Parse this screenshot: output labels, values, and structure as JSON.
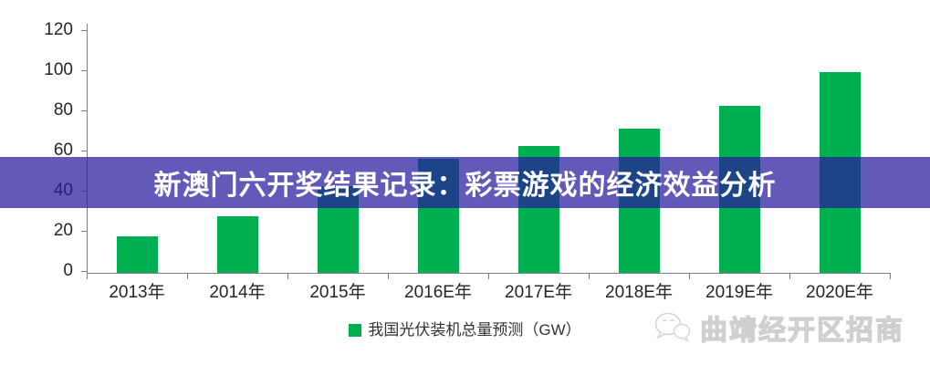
{
  "banner": {
    "title": "新澳门六开奖结果记录：彩票游戏的经济效益分析",
    "bg_color": "rgba(41,27,158,0.73)",
    "text_color": "#ffffff"
  },
  "chart_data": {
    "type": "bar",
    "title": "",
    "categories": [
      "2013年",
      "2014年",
      "2015年",
      "2016E年",
      "2017E年",
      "2018E年",
      "2019E年",
      "2020E年"
    ],
    "values": [
      18,
      28,
      43,
      57,
      63,
      72,
      83,
      100
    ],
    "series_name": "我国光伏装机总量预测（GW）",
    "xlabel": "",
    "ylabel": "",
    "ylim": [
      0,
      120
    ],
    "yticks": [
      0,
      20,
      40,
      60,
      80,
      100,
      120
    ],
    "bar_color": "#00B050",
    "axis_color": "#808080",
    "grid": false,
    "legend_position": "bottom"
  },
  "legend": {
    "label": "我国光伏装机总量预测（GW）",
    "swatch_color": "#00B050"
  },
  "watermark": {
    "logo": "wechat-icon",
    "text": "曲靖经开区招商"
  }
}
